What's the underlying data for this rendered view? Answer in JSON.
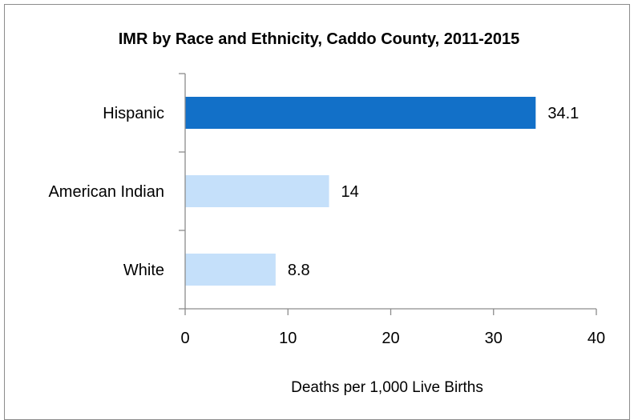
{
  "chart_data": {
    "type": "bar",
    "orientation": "horizontal",
    "title": "IMR by Race and Ethnicity, Caddo County, 2011-2015",
    "xlabel": "Deaths per 1,000 Live Births",
    "ylabel": "",
    "categories": [
      "Hispanic",
      "American Indian",
      "White"
    ],
    "values": [
      34.1,
      14,
      8.8
    ],
    "value_labels": [
      "34.1",
      "14",
      "8.8"
    ],
    "xlim": [
      0,
      40
    ],
    "xticks": [
      0,
      10,
      20,
      30,
      40
    ],
    "grid": false,
    "legend": "none",
    "colors": {
      "Hispanic": "#1270c8",
      "American Indian": "#c5e0fa",
      "White": "#c5e0fa"
    }
  }
}
